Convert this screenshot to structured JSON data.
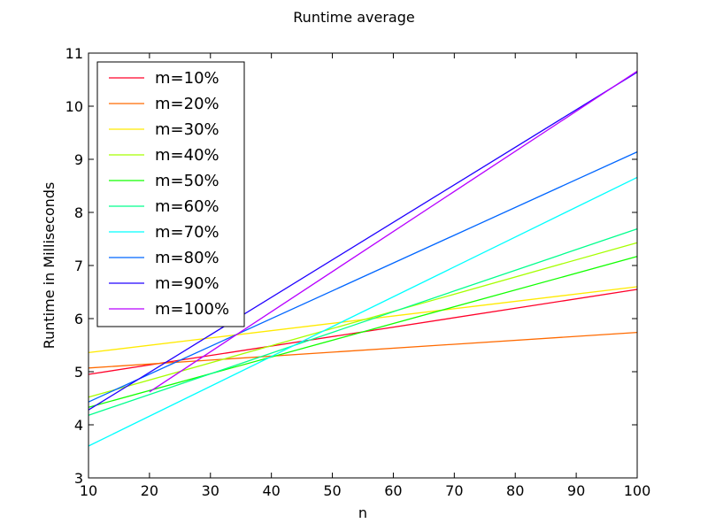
{
  "chart_data": {
    "type": "line",
    "title": "Runtime average",
    "xlabel": "n",
    "ylabel": "Runtime in Milliseconds",
    "xlim": [
      10,
      100
    ],
    "ylim": [
      3,
      11
    ],
    "xticks": [
      10,
      20,
      30,
      40,
      50,
      60,
      70,
      80,
      90,
      100
    ],
    "yticks": [
      3,
      4,
      5,
      6,
      7,
      8,
      9,
      10,
      11
    ],
    "grid": false,
    "legend": "top-left",
    "series": [
      {
        "name": "m=10%",
        "color": "#ff0029",
        "x": [
          10,
          100
        ],
        "y": [
          4.95,
          6.55
        ]
      },
      {
        "name": "m=20%",
        "color": "#ff6a00",
        "x": [
          10,
          100
        ],
        "y": [
          5.07,
          5.74
        ]
      },
      {
        "name": "m=30%",
        "color": "#ffea00",
        "x": [
          10,
          100
        ],
        "y": [
          5.36,
          6.6
        ]
      },
      {
        "name": "m=40%",
        "color": "#a6ff00",
        "x": [
          10,
          100
        ],
        "y": [
          4.52,
          7.43
        ]
      },
      {
        "name": "m=50%",
        "color": "#11ff00",
        "x": [
          10,
          100
        ],
        "y": [
          4.33,
          7.17
        ]
      },
      {
        "name": "m=60%",
        "color": "#00ff8d",
        "x": [
          10,
          100
        ],
        "y": [
          4.18,
          7.69
        ]
      },
      {
        "name": "m=70%",
        "color": "#00ffff",
        "x": [
          10,
          100
        ],
        "y": [
          3.6,
          8.66
        ]
      },
      {
        "name": "m=80%",
        "color": "#0066ff",
        "x": [
          10,
          100
        ],
        "y": [
          4.43,
          9.14
        ]
      },
      {
        "name": "m=90%",
        "color": "#2000ff",
        "x": [
          10,
          100
        ],
        "y": [
          4.28,
          10.64
        ]
      },
      {
        "name": "m=100%",
        "color": "#b700ff",
        "x": [
          20,
          100
        ],
        "y": [
          4.62,
          10.66
        ]
      }
    ]
  }
}
